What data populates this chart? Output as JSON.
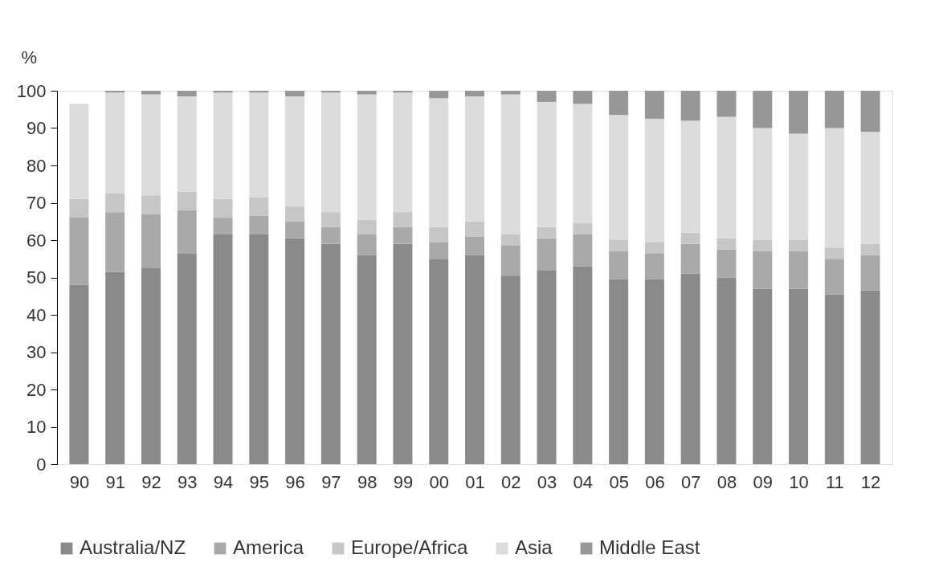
{
  "chart_data": {
    "type": "bar",
    "stacked": true,
    "ylabel": "%",
    "categories": [
      "90",
      "91",
      "92",
      "93",
      "94",
      "95",
      "96",
      "97",
      "98",
      "99",
      "00",
      "01",
      "02",
      "03",
      "04",
      "05",
      "06",
      "07",
      "08",
      "09",
      "10",
      "11",
      "12"
    ],
    "series": [
      {
        "name": "Australia/NZ",
        "color": "#8a8a8a",
        "values": [
          48,
          51.5,
          52.5,
          56.5,
          61.5,
          61.5,
          60.5,
          59,
          56,
          59,
          55,
          56,
          50.5,
          52,
          53,
          49.5,
          49.5,
          51,
          50,
          47,
          47,
          45.5,
          46.5
        ]
      },
      {
        "name": "America",
        "color": "#a9a9a9",
        "values": [
          18,
          16,
          14.5,
          11.5,
          4.5,
          5,
          4.5,
          4.5,
          5.5,
          4.5,
          4.5,
          5,
          8,
          8.5,
          8.5,
          7.5,
          7,
          8,
          7.5,
          10,
          10,
          9.5,
          9.5
        ]
      },
      {
        "name": "Europe/Africa",
        "color": "#c6c6c6",
        "values": [
          5,
          5,
          5,
          5,
          5,
          5,
          4,
          4,
          4,
          4,
          4,
          4,
          3,
          3,
          3,
          3,
          3,
          3,
          3,
          3,
          3,
          3,
          3
        ]
      },
      {
        "name": "Asia",
        "color": "#dcdcdc",
        "values": [
          25.5,
          27,
          27,
          25.5,
          28.5,
          28,
          29.5,
          32,
          33.5,
          32,
          34.5,
          33.5,
          37.5,
          33.5,
          32,
          33.5,
          33,
          30,
          32.5,
          30,
          28.5,
          32,
          30
        ]
      },
      {
        "name": "Middle East",
        "color": "#979797",
        "values": [
          0,
          0.5,
          1,
          1.5,
          0.5,
          0.5,
          1.5,
          0.5,
          1,
          0.5,
          2,
          1.5,
          1,
          3,
          3.5,
          6.5,
          7.5,
          8,
          7,
          10,
          11.5,
          10,
          11
        ]
      }
    ],
    "ylim": [
      0,
      100
    ],
    "yticks": [
      0,
      10,
      20,
      30,
      40,
      50,
      60,
      70,
      80,
      90,
      100
    ],
    "grid": false,
    "legend": "bottom"
  }
}
